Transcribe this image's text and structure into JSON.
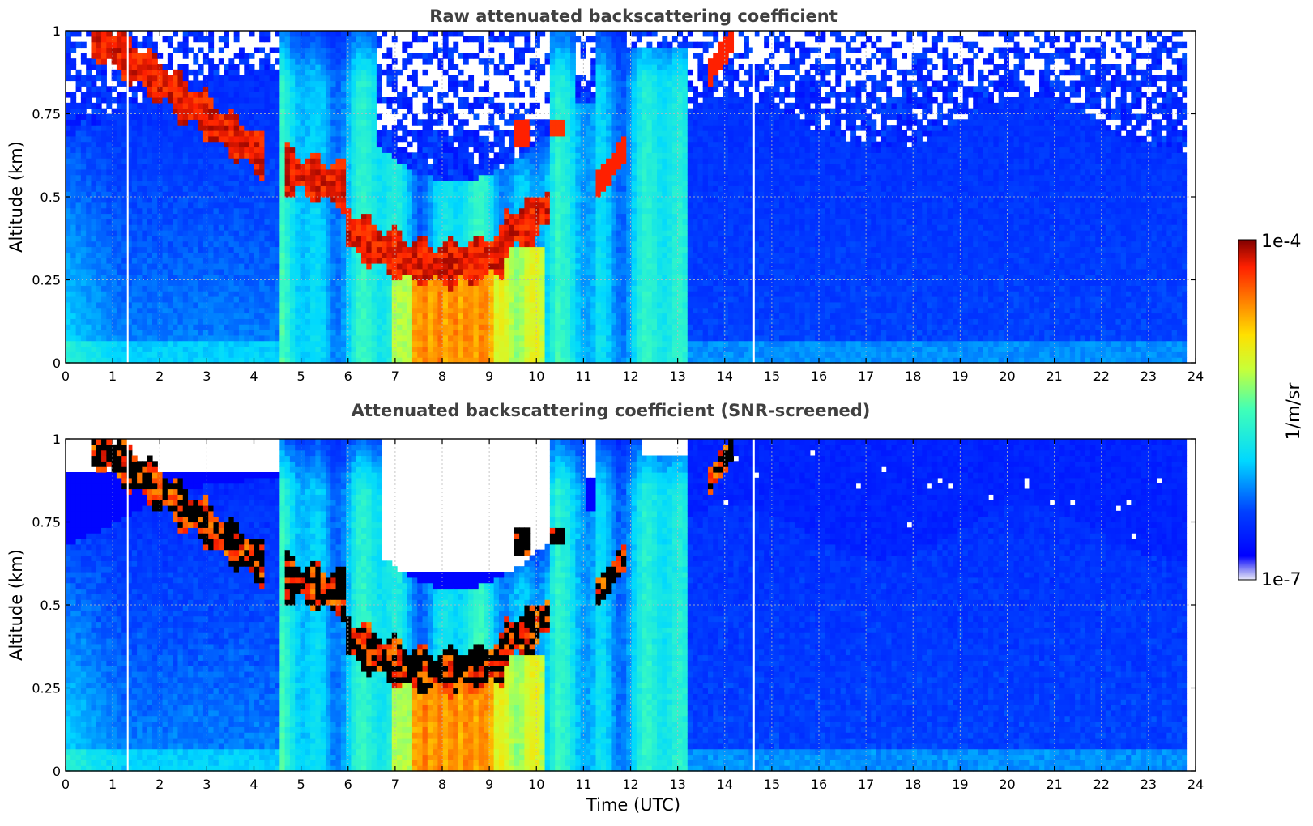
{
  "chart_data": [
    {
      "type": "heatmap",
      "title": "Raw attenuated backscattering coefficient",
      "xlabel": "",
      "ylabel": "Altitude (km)",
      "xlim": [
        0,
        24
      ],
      "ylim": [
        0,
        1
      ],
      "x_ticks": [
        "0",
        "1",
        "2",
        "3",
        "4",
        "5",
        "6",
        "7",
        "8",
        "9",
        "10",
        "11",
        "12",
        "13",
        "14",
        "15",
        "16",
        "17",
        "18",
        "19",
        "20",
        "21",
        "22",
        "23",
        "24"
      ],
      "y_ticks": [
        "0",
        "0.25",
        "0.5",
        "0.75",
        "1"
      ],
      "grid": true,
      "colorscale": "jet",
      "colorbar": {
        "min_label": "1e-7",
        "max_label": "1e-4",
        "label": "1/m/sr"
      },
      "screened": false,
      "features": [
        {
          "name": "descending cloud layer",
          "t_start": 0.5,
          "t_end": 4.2,
          "alt_start": 1.0,
          "alt_end": 0.6
        },
        {
          "name": "boundary layer top",
          "t_start": 4.6,
          "t_end": 10.3,
          "alt_min": 0.3
        },
        {
          "name": "rain/fog core",
          "t_start": 7.4,
          "t_end": 9.1,
          "alt_top": 0.35
        },
        {
          "name": "cloud at 11.5h",
          "t_start": 11.3,
          "t_end": 11.9,
          "alt": 0.58
        },
        {
          "name": "cloud at 14h",
          "t_start": 13.6,
          "t_end": 14.2,
          "alt": 0.9
        }
      ]
    },
    {
      "type": "heatmap",
      "title": "Attenuated backscattering coefficient (SNR-screened)",
      "xlabel": "Time (UTC)",
      "ylabel": "Altitude (km)",
      "xlim": [
        0,
        24
      ],
      "ylim": [
        0,
        1
      ],
      "x_ticks": [
        "0",
        "1",
        "2",
        "3",
        "4",
        "5",
        "6",
        "7",
        "8",
        "9",
        "10",
        "11",
        "12",
        "13",
        "14",
        "15",
        "16",
        "17",
        "18",
        "19",
        "20",
        "21",
        "22",
        "23",
        "24"
      ],
      "y_ticks": [
        "0",
        "0.25",
        "0.5",
        "0.75",
        "1"
      ],
      "grid": true,
      "colorscale": "jet",
      "colorbar": {
        "min_label": "1e-7",
        "max_label": "1e-4",
        "label": "1/m/sr"
      },
      "screened": true
    }
  ],
  "colorbar": {
    "max_label": "1e-4",
    "min_label": "1e-7",
    "label": "1/m/sr"
  }
}
